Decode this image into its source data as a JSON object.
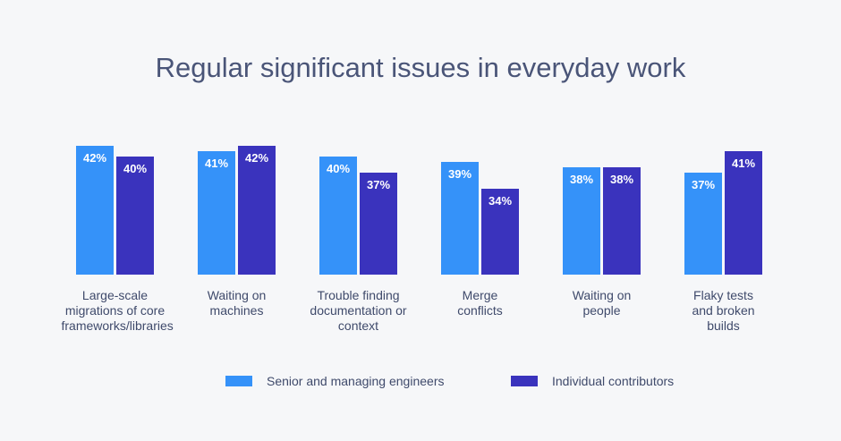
{
  "chart_data": {
    "type": "bar",
    "title": "Regular significant issues in everyday work",
    "categories": [
      "Large-scale migrations of core frameworks/libraries",
      "Waiting on machines",
      "Trouble finding documentation or context",
      "Merge conflicts",
      "Waiting on people",
      "Flaky tests and broken builds"
    ],
    "series": [
      {
        "name": "Senior and managing engineers",
        "color": "#3592f9",
        "values": [
          42,
          41,
          40,
          39,
          38,
          37
        ]
      },
      {
        "name": "Individual contributors",
        "color": "#3a33bd",
        "values": [
          40,
          42,
          37,
          34,
          38,
          41
        ]
      }
    ],
    "value_format": "{v}%",
    "ylim": [
      18,
      45
    ],
    "grid": false,
    "legend": "bottom"
  }
}
